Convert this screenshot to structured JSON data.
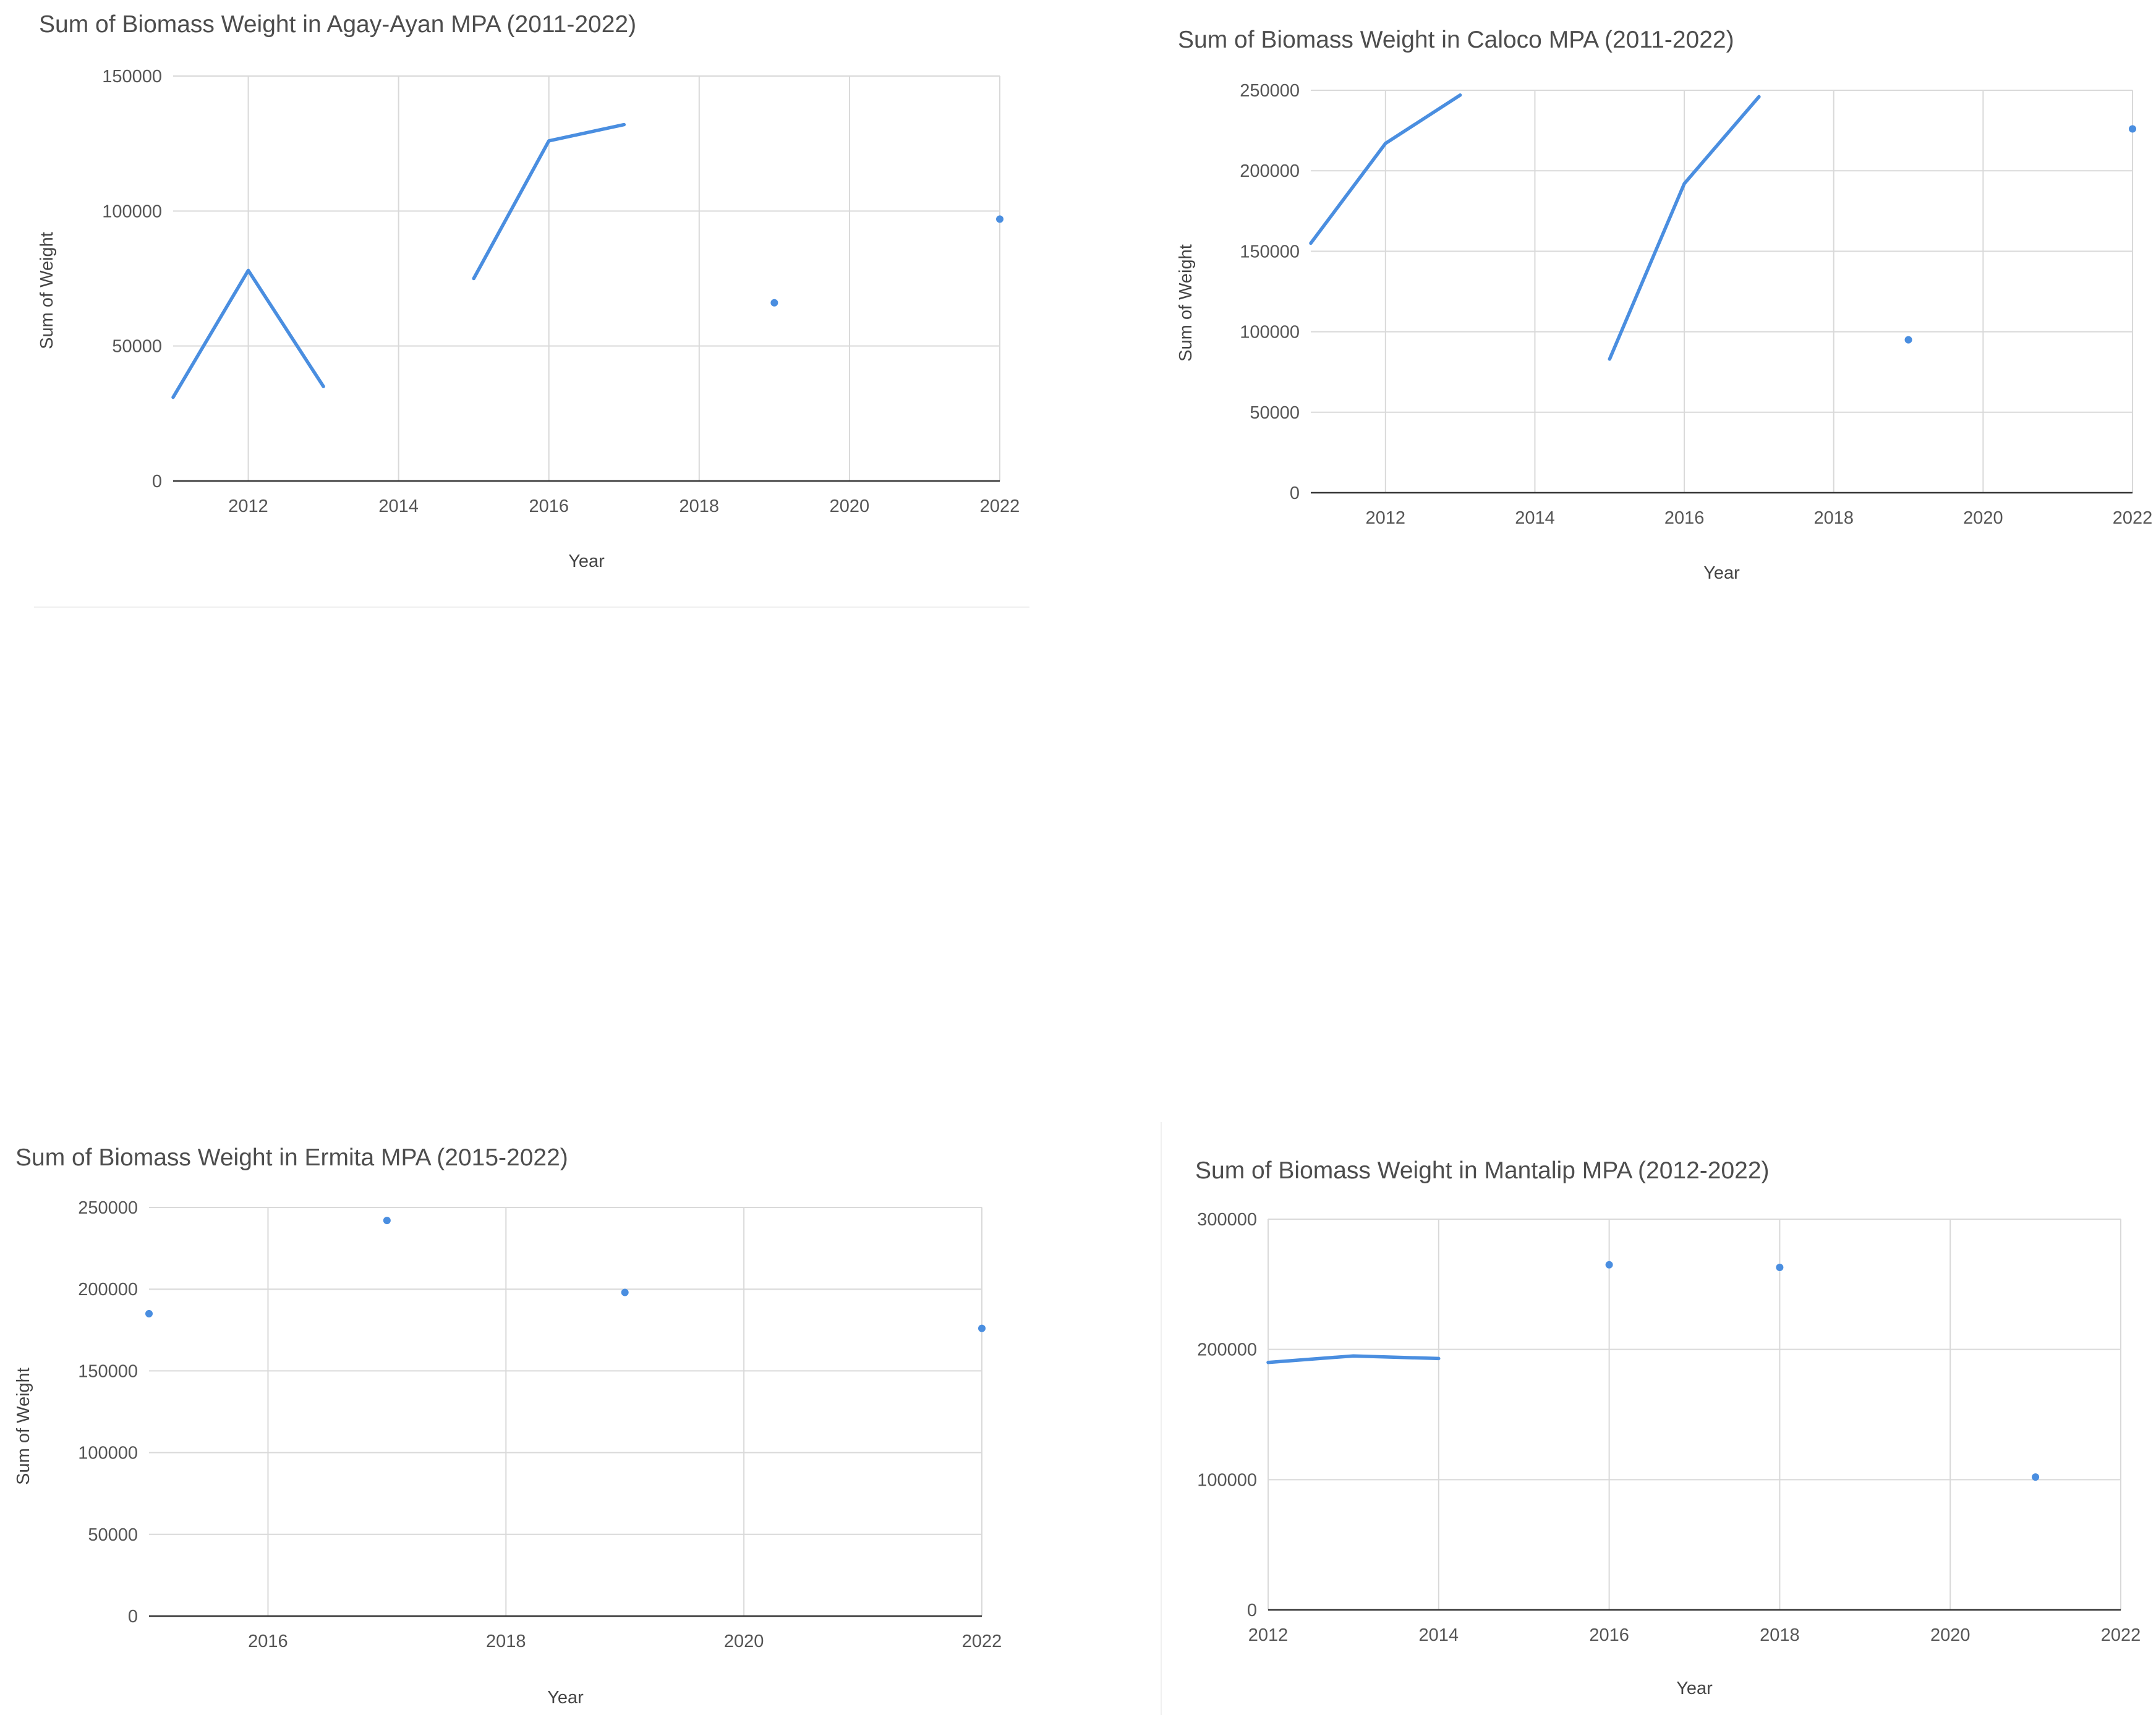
{
  "accent_color": "#4a8ee0",
  "chart_data": [
    {
      "type": "line",
      "title": "Sum of Biomass Weight in Agay-Ayan MPA (2011-2022)",
      "xlabel": "Year",
      "ylabel": "Sum of Weight",
      "xlim": [
        2011,
        2022
      ],
      "ylim": [
        0,
        150000
      ],
      "xticks": [
        2012,
        2014,
        2016,
        2018,
        2020,
        2022
      ],
      "yticks": [
        0,
        50000,
        100000,
        150000
      ],
      "grid": true,
      "series": [
        {
          "points": [
            [
              2011,
              31000
            ],
            [
              2012,
              78000
            ],
            [
              2013,
              35000
            ],
            [
              2015,
              75000
            ],
            [
              2016,
              126000
            ],
            [
              2017,
              132000
            ],
            [
              2019,
              66000
            ],
            [
              2022,
              97000
            ]
          ]
        }
      ]
    },
    {
      "type": "line",
      "title": "Sum of Biomass Weight in Caloco MPA (2011-2022)",
      "xlabel": "Year",
      "ylabel": "Sum of Weight",
      "xlim": [
        2011,
        2022
      ],
      "ylim": [
        0,
        250000
      ],
      "xticks": [
        2012,
        2014,
        2016,
        2018,
        2020,
        2022
      ],
      "yticks": [
        0,
        50000,
        100000,
        150000,
        200000,
        250000
      ],
      "grid": true,
      "series": [
        {
          "points": [
            [
              2011,
              155000
            ],
            [
              2012,
              217000
            ],
            [
              2013,
              247000
            ],
            [
              2015,
              83000
            ],
            [
              2016,
              192000
            ],
            [
              2017,
              246000
            ],
            [
              2019,
              95000
            ],
            [
              2022,
              226000
            ]
          ]
        }
      ]
    },
    {
      "type": "line",
      "title": "Sum of Biomass Weight in Ermita MPA (2015-2022)",
      "xlabel": "Year",
      "ylabel": "Sum of Weight",
      "xlim": [
        2015,
        2022
      ],
      "ylim": [
        0,
        250000
      ],
      "xticks": [
        2016,
        2018,
        2020,
        2022
      ],
      "yticks": [
        0,
        50000,
        100000,
        150000,
        200000,
        250000
      ],
      "grid": true,
      "series": [
        {
          "points": [
            [
              2015,
              185000
            ],
            [
              2017,
              242000
            ],
            [
              2019,
              198000
            ],
            [
              2022,
              176000
            ]
          ]
        }
      ]
    },
    {
      "type": "line",
      "title": "Sum of Biomass Weight in Mantalip MPA (2012-2022)",
      "xlabel": "Year",
      "ylabel": "",
      "xlim": [
        2012,
        2022
      ],
      "ylim": [
        0,
        300000
      ],
      "xticks": [
        2012,
        2014,
        2016,
        2018,
        2020,
        2022
      ],
      "yticks": [
        0,
        100000,
        200000,
        300000
      ],
      "grid": true,
      "series": [
        {
          "points": [
            [
              2012,
              190000
            ],
            [
              2013,
              195000
            ],
            [
              2014,
              193000
            ],
            [
              2016,
              265000
            ],
            [
              2018,
              263000
            ],
            [
              2021,
              102000
            ]
          ]
        }
      ]
    }
  ]
}
